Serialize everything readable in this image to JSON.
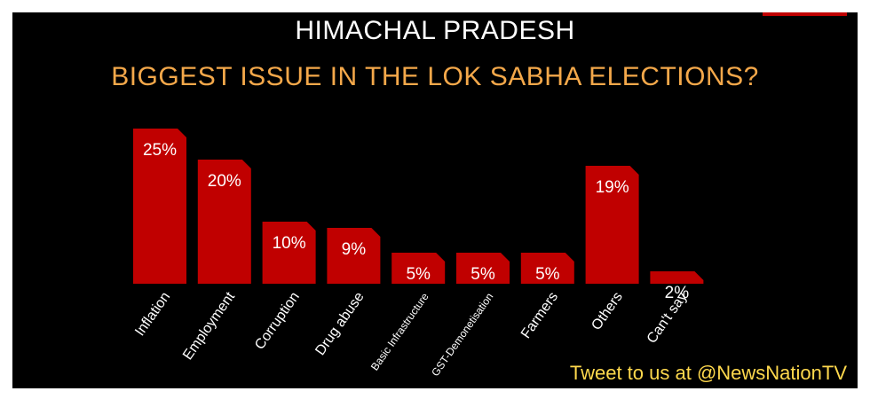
{
  "header": {
    "title": "HIMACHAL PRADESH",
    "subtitle": "BIGGEST ISSUE IN THE LOK SABHA ELECTIONS?"
  },
  "footer": {
    "text": "Tweet to us at @NewsNationTV"
  },
  "colors": {
    "background": "#000000",
    "bar": "#c00000",
    "title": "#ffffff",
    "subtitle": "#f4a84a",
    "footer": "#ffd94d",
    "accent": "#c00000"
  },
  "chart_data": {
    "type": "bar",
    "title": "BIGGEST ISSUE IN THE LOK SABHA ELECTIONS?",
    "xlabel": "",
    "ylabel": "",
    "categories": [
      "Inflation",
      "Employment",
      "Corruption",
      "Drug abuse",
      "Basic Infrastructure",
      "GST-Demonetisation",
      "Farmers",
      "Others",
      "Can't say"
    ],
    "values": [
      25,
      20,
      10,
      9,
      5,
      5,
      5,
      19,
      2
    ],
    "data_labels": [
      "25%",
      "20%",
      "10%",
      "9%",
      "5%",
      "5%",
      "5%",
      "19%",
      "2%"
    ],
    "grid": false,
    "legend": "none"
  }
}
